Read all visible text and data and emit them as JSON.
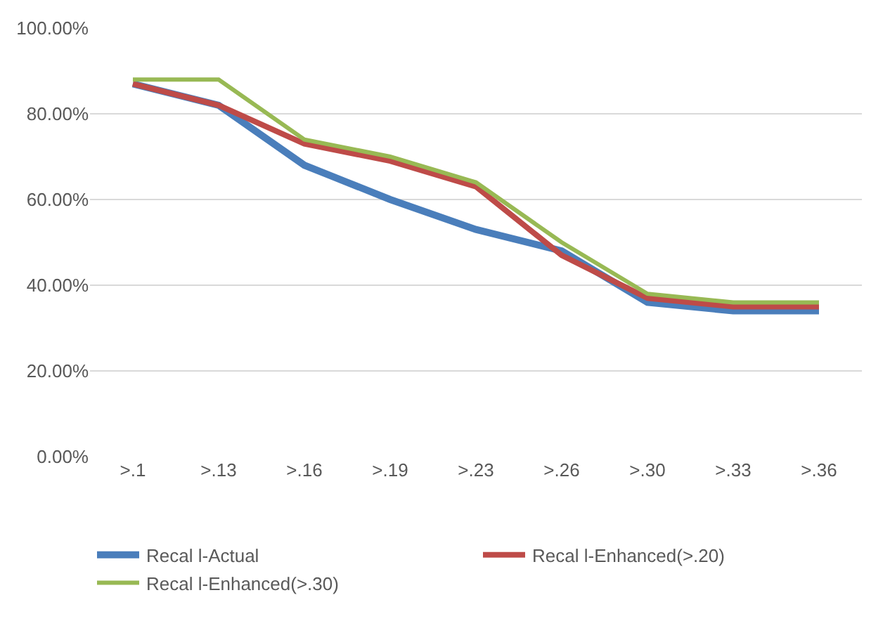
{
  "chart_data": {
    "type": "line",
    "categories": [
      ">.1",
      ">.13",
      ">.16",
      ">.19",
      ">.23",
      ">.26",
      ">.30",
      ">.33",
      ">.36"
    ],
    "series": [
      {
        "name": "Recal l-Actual",
        "color": "#4a7ebb",
        "values": [
          87,
          82,
          68,
          60,
          53,
          48,
          36,
          34,
          34
        ]
      },
      {
        "name": "Recal l-Enhanced(>.20)",
        "color": "#be4b48",
        "values": [
          87,
          82,
          73,
          69,
          63,
          47,
          37,
          35,
          35
        ]
      },
      {
        "name": "Recal l-Enhanced(>.30)",
        "color": "#98b954",
        "values": [
          88,
          88,
          74,
          70,
          64,
          50,
          38,
          36,
          36
        ]
      }
    ],
    "ylim": [
      0,
      100
    ],
    "yticks": [
      {
        "value": 0,
        "label": "0.00%"
      },
      {
        "value": 20,
        "label": "20.00%"
      },
      {
        "value": 40,
        "label": "40.00%"
      },
      {
        "value": 60,
        "label": "60.00%"
      },
      {
        "value": 80,
        "label": "80.00%"
      },
      {
        "value": 100,
        "label": "100.00%"
      }
    ],
    "grid": "y",
    "legend": "bottom",
    "marker": "none",
    "line_style": "solid"
  }
}
